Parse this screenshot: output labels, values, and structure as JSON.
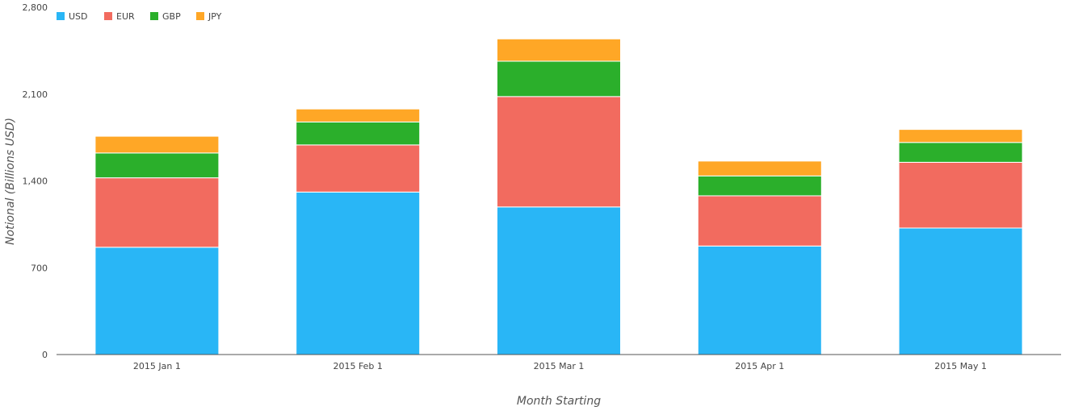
{
  "chart_data": {
    "type": "bar",
    "stacked": true,
    "categories": [
      "2015 Jan 1",
      "2015 Feb 1",
      "2015 Mar 1",
      "2015 Apr 1",
      "2015 May 1"
    ],
    "series": [
      {
        "name": "USD",
        "color": "#29b6f6",
        "values": [
          865,
          1310,
          1190,
          875,
          1020
        ]
      },
      {
        "name": "EUR",
        "color": "#f26b5f",
        "values": [
          560,
          380,
          890,
          405,
          530
        ]
      },
      {
        "name": "GBP",
        "color": "#2baf2b",
        "values": [
          200,
          185,
          285,
          160,
          160
        ]
      },
      {
        "name": "JPY",
        "color": "#ffa726",
        "values": [
          135,
          105,
          180,
          120,
          105
        ]
      }
    ],
    "ylim": [
      0,
      2800
    ],
    "yticks": [
      0,
      700,
      1400,
      2100,
      2800
    ],
    "ytick_labels": [
      "0",
      "700",
      "1,400",
      "2,100",
      "2,800"
    ],
    "xlabel": "Month Starting",
    "ylabel": "Notional (Billions USD)",
    "title": "",
    "grid": false,
    "legend_position": "top-left"
  }
}
